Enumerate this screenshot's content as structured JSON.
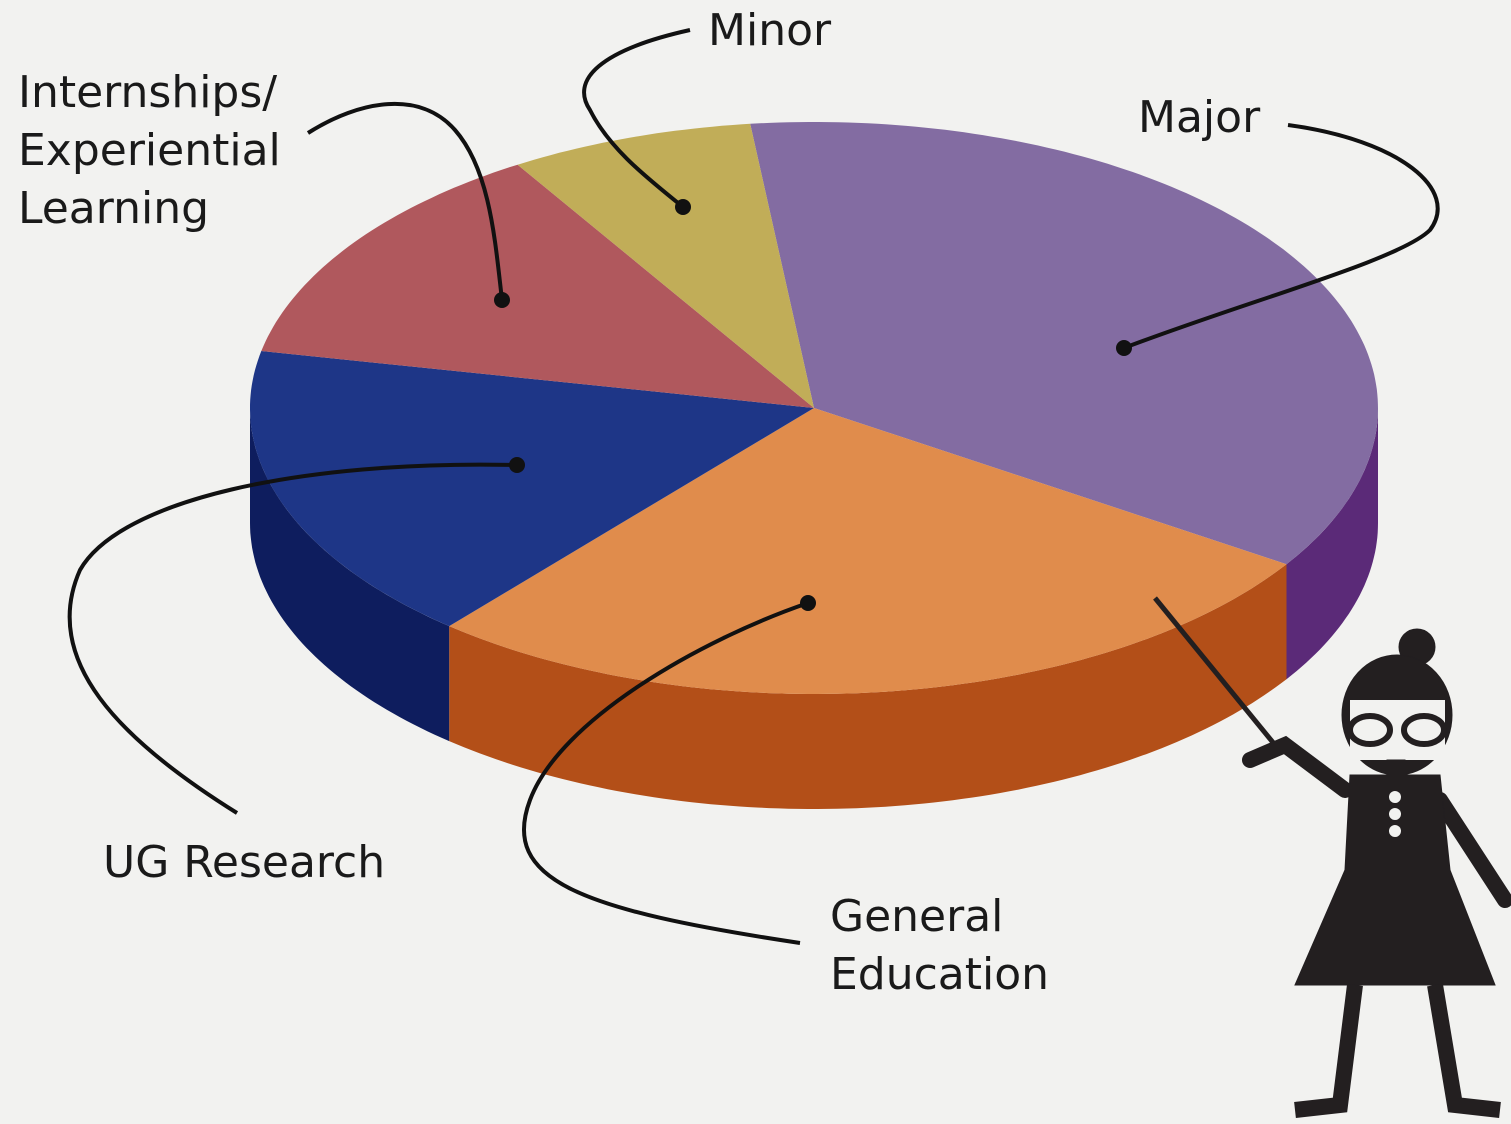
{
  "chart_data": {
    "type": "pie",
    "categories": [
      "Major",
      "General Education",
      "UG Research",
      "Internships/ Experiential Learning",
      "Minor"
    ],
    "values": [
      36,
      27,
      17,
      13,
      7
    ],
    "colors": [
      "#836ca2",
      "#e08c4c",
      "#1e3687",
      "#b0585d",
      "#c1ad58"
    ],
    "side_colors": [
      "#5b2a78",
      "#b34f18",
      "#0e1d5e",
      "#7e3338",
      "#8d7b30"
    ]
  }
}
